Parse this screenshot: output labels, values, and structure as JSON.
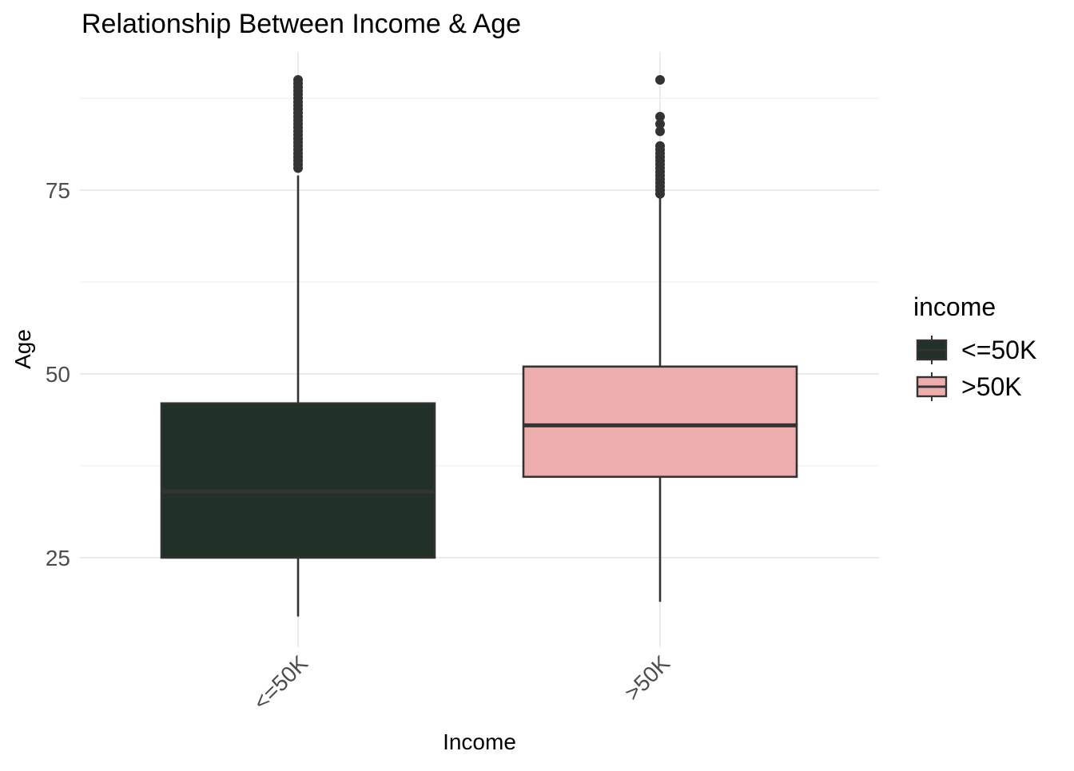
{
  "chart_data": {
    "type": "boxplot",
    "title": "Relationship Between Income & Age",
    "xlabel": "Income",
    "ylabel": "Age",
    "ylim": [
      12,
      92
    ],
    "y_ticks": [
      25,
      50,
      75
    ],
    "grid": true,
    "legend": {
      "title": "income",
      "position": "right"
    },
    "categories": [
      "<=50K",
      ">50K"
    ],
    "series": [
      {
        "name": "<=50K",
        "color": "#213127",
        "median_color": "#333333",
        "min": 17,
        "q1": 25,
        "median": 34,
        "q3": 46,
        "max": 77,
        "outliers": [
          78,
          78.5,
          79,
          79.5,
          80,
          80.5,
          81,
          81.5,
          82,
          82.5,
          83,
          83.5,
          84,
          84.5,
          85,
          85.5,
          86,
          86.5,
          87,
          87.5,
          88,
          88.5,
          89,
          89.5,
          90
        ]
      },
      {
        "name": ">50K",
        "color": "#eeadad",
        "median_color": "#333333",
        "min": 19,
        "q1": 36,
        "median": 43,
        "q3": 51,
        "max": 74,
        "outliers": [
          74.5,
          75,
          75.5,
          76,
          76.5,
          77,
          77.5,
          78,
          78.5,
          79,
          79.5,
          80,
          80.5,
          81,
          83,
          84,
          85,
          90
        ]
      }
    ]
  }
}
